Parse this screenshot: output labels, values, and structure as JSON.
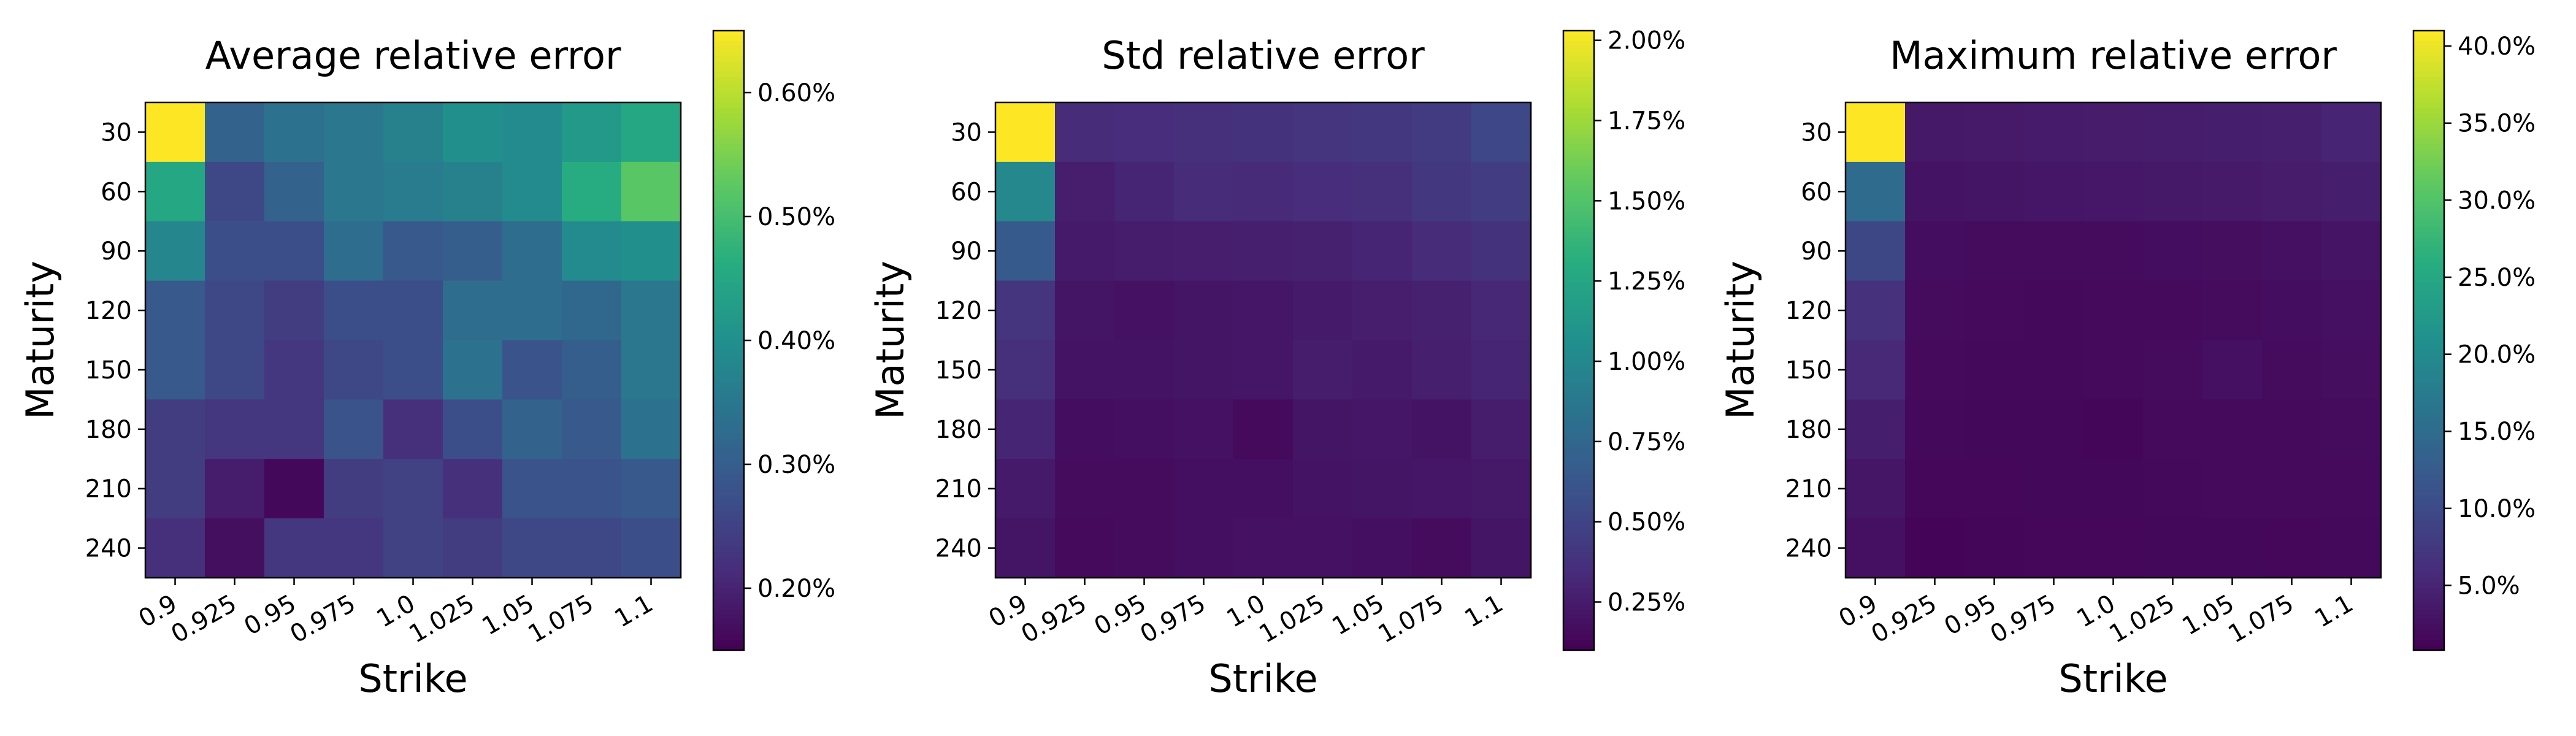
{
  "chart_data": [
    {
      "type": "heatmap",
      "title": "Average relative error",
      "xlabel": "Strike",
      "ylabel": "Maturity",
      "x_categories": [
        "0.9",
        "0.925",
        "0.95",
        "0.975",
        "1.0",
        "1.025",
        "1.05",
        "1.075",
        "1.1"
      ],
      "y_categories": [
        "30",
        "60",
        "90",
        "120",
        "150",
        "180",
        "210",
        "240"
      ],
      "colormap": "viridis",
      "clim": [
        0.15,
        0.65
      ],
      "colorbar_ticks": [
        0.2,
        0.3,
        0.4,
        0.5,
        0.6
      ],
      "colorbar_tick_labels": [
        "0.20%",
        "0.30%",
        "0.40%",
        "0.50%",
        "0.60%"
      ],
      "values": [
        [
          0.65,
          0.31,
          0.34,
          0.35,
          0.37,
          0.4,
          0.39,
          0.42,
          0.45
        ],
        [
          0.45,
          0.26,
          0.31,
          0.35,
          0.36,
          0.37,
          0.39,
          0.46,
          0.52
        ],
        [
          0.38,
          0.27,
          0.27,
          0.33,
          0.29,
          0.3,
          0.33,
          0.39,
          0.4
        ],
        [
          0.29,
          0.26,
          0.24,
          0.27,
          0.27,
          0.33,
          0.33,
          0.32,
          0.35
        ],
        [
          0.29,
          0.26,
          0.23,
          0.26,
          0.27,
          0.34,
          0.28,
          0.3,
          0.35
        ],
        [
          0.24,
          0.23,
          0.23,
          0.28,
          0.22,
          0.27,
          0.31,
          0.29,
          0.34
        ],
        [
          0.24,
          0.19,
          0.16,
          0.24,
          0.25,
          0.22,
          0.28,
          0.28,
          0.29
        ],
        [
          0.22,
          0.17,
          0.23,
          0.23,
          0.25,
          0.24,
          0.26,
          0.26,
          0.27
        ]
      ]
    },
    {
      "type": "heatmap",
      "title": "Std relative error",
      "xlabel": "Strike",
      "ylabel": "Maturity",
      "x_categories": [
        "0.9",
        "0.925",
        "0.95",
        "0.975",
        "1.0",
        "1.025",
        "1.05",
        "1.075",
        "1.1"
      ],
      "y_categories": [
        "30",
        "60",
        "90",
        "120",
        "150",
        "180",
        "210",
        "240"
      ],
      "colormap": "viridis",
      "clim": [
        0.1,
        2.03
      ],
      "colorbar_ticks": [
        0.25,
        0.5,
        0.75,
        1.0,
        1.25,
        1.5,
        1.75,
        2.0
      ],
      "colorbar_tick_labels": [
        "0.25%",
        "0.50%",
        "0.75%",
        "1.00%",
        "1.25%",
        "1.50%",
        "1.75%",
        "2.00%"
      ],
      "values": [
        [
          2.03,
          0.34,
          0.35,
          0.37,
          0.38,
          0.4,
          0.42,
          0.44,
          0.52
        ],
        [
          1.0,
          0.26,
          0.3,
          0.34,
          0.33,
          0.35,
          0.37,
          0.42,
          0.45
        ],
        [
          0.65,
          0.24,
          0.25,
          0.26,
          0.27,
          0.28,
          0.3,
          0.34,
          0.38
        ],
        [
          0.4,
          0.21,
          0.19,
          0.21,
          0.22,
          0.24,
          0.26,
          0.28,
          0.32
        ],
        [
          0.36,
          0.2,
          0.2,
          0.21,
          0.22,
          0.25,
          0.24,
          0.27,
          0.3
        ],
        [
          0.3,
          0.17,
          0.18,
          0.19,
          0.15,
          0.21,
          0.22,
          0.2,
          0.25
        ],
        [
          0.24,
          0.16,
          0.16,
          0.18,
          0.18,
          0.2,
          0.21,
          0.22,
          0.23
        ],
        [
          0.21,
          0.15,
          0.16,
          0.18,
          0.19,
          0.19,
          0.18,
          0.16,
          0.21
        ]
      ]
    },
    {
      "type": "heatmap",
      "title": "Maximum relative error",
      "xlabel": "Strike",
      "ylabel": "Maturity",
      "x_categories": [
        "0.9",
        "0.925",
        "0.95",
        "0.975",
        "1.0",
        "1.025",
        "1.05",
        "1.075",
        "1.1"
      ],
      "y_categories": [
        "30",
        "60",
        "90",
        "120",
        "150",
        "180",
        "210",
        "240"
      ],
      "colormap": "viridis",
      "clim": [
        0.8,
        41.0
      ],
      "colorbar_ticks": [
        5,
        10,
        15,
        20,
        25,
        30,
        35,
        40
      ],
      "colorbar_tick_labels": [
        "5.0%",
        "10.0%",
        "15.0%",
        "20.0%",
        "25.0%",
        "30.0%",
        "35.0%",
        "40.0%"
      ],
      "values": [
        [
          41.0,
          3.5,
          3.6,
          3.8,
          3.9,
          4.0,
          4.2,
          4.3,
          5.0
        ],
        [
          15.0,
          2.9,
          3.1,
          3.3,
          3.4,
          3.5,
          3.6,
          3.9,
          4.2
        ],
        [
          9.5,
          2.2,
          2.0,
          2.1,
          2.1,
          2.2,
          2.3,
          2.6,
          3.0
        ],
        [
          6.5,
          2.0,
          1.8,
          1.7,
          1.8,
          1.9,
          2.0,
          2.2,
          2.5
        ],
        [
          5.5,
          1.9,
          1.7,
          1.7,
          1.9,
          2.0,
          2.6,
          2.1,
          2.3
        ],
        [
          4.2,
          1.7,
          1.6,
          1.6,
          1.4,
          1.8,
          1.9,
          1.8,
          2.1
        ],
        [
          3.2,
          1.5,
          1.5,
          1.6,
          1.6,
          1.7,
          1.8,
          1.8,
          1.8
        ],
        [
          2.5,
          1.3,
          1.4,
          1.5,
          1.5,
          1.6,
          1.6,
          1.5,
          1.7
        ]
      ]
    }
  ]
}
